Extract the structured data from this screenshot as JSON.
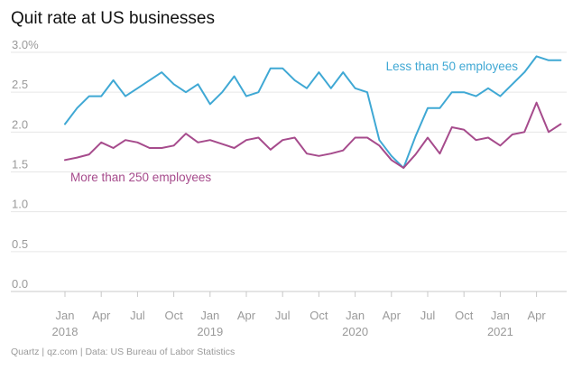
{
  "title": "Quit rate at US businesses",
  "source": "Quartz | qz.com | Data: US Bureau of Labor Statistics",
  "chart_data": {
    "type": "line",
    "title": "Quit rate at US businesses",
    "ylim": [
      0,
      3.0
    ],
    "yticks": [
      0.0,
      0.5,
      1.0,
      1.5,
      2.0,
      2.5,
      3.0
    ],
    "ytick_labels": [
      "0.0",
      "0.5",
      "1.0",
      "1.5",
      "2.0",
      "2.5",
      "3.0%"
    ],
    "x_start": "Jan 2018",
    "x_end": "Jun 2021",
    "xtick_labels": [
      {
        "m": 0,
        "month": "Jan",
        "year": "2018"
      },
      {
        "m": 3,
        "month": "Apr",
        "year": ""
      },
      {
        "m": 6,
        "month": "Jul",
        "year": ""
      },
      {
        "m": 9,
        "month": "Oct",
        "year": ""
      },
      {
        "m": 12,
        "month": "Jan",
        "year": "2019"
      },
      {
        "m": 15,
        "month": "Apr",
        "year": ""
      },
      {
        "m": 18,
        "month": "Jul",
        "year": ""
      },
      {
        "m": 21,
        "month": "Oct",
        "year": ""
      },
      {
        "m": 24,
        "month": "Jan",
        "year": "2020"
      },
      {
        "m": 27,
        "month": "Apr",
        "year": ""
      },
      {
        "m": 30,
        "month": "Jul",
        "year": ""
      },
      {
        "m": 33,
        "month": "Oct",
        "year": ""
      },
      {
        "m": 36,
        "month": "Jan",
        "year": "2021"
      },
      {
        "m": 39,
        "month": "Apr",
        "year": ""
      }
    ],
    "series": [
      {
        "name": "Less than 50 employees",
        "color": "#3fa8d4",
        "values": [
          2.1,
          2.3,
          2.45,
          2.45,
          2.65,
          2.45,
          2.55,
          2.65,
          2.75,
          2.6,
          2.5,
          2.6,
          2.35,
          2.5,
          2.7,
          2.45,
          2.5,
          2.8,
          2.8,
          2.65,
          2.55,
          2.75,
          2.55,
          2.75,
          2.55,
          2.5,
          1.9,
          1.7,
          1.55,
          1.95,
          2.3,
          2.3,
          2.5,
          2.5,
          2.45,
          2.55,
          2.45,
          2.6,
          2.75,
          2.95,
          2.9,
          2.9
        ]
      },
      {
        "name": "More than 250 employees",
        "color": "#a64b8c",
        "values": [
          1.65,
          1.68,
          1.72,
          1.87,
          1.8,
          1.9,
          1.87,
          1.8,
          1.8,
          1.83,
          1.98,
          1.87,
          1.9,
          1.85,
          1.8,
          1.9,
          1.93,
          1.78,
          1.9,
          1.93,
          1.73,
          1.7,
          1.73,
          1.77,
          1.93,
          1.93,
          1.83,
          1.65,
          1.55,
          1.72,
          1.93,
          1.73,
          2.06,
          2.03,
          1.9,
          1.93,
          1.83,
          1.97,
          2.0,
          2.37,
          2.0,
          2.1
        ]
      }
    ]
  }
}
